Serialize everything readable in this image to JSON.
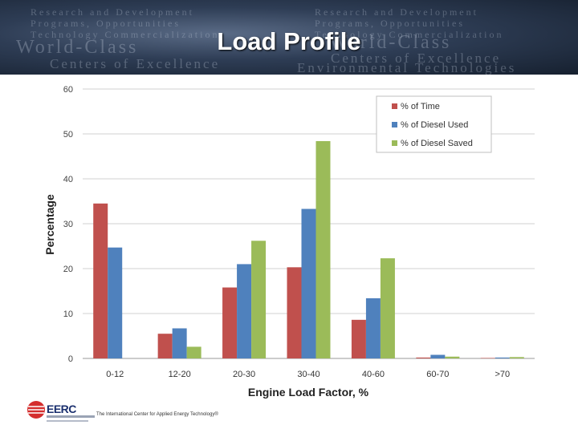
{
  "slide": {
    "title": "Load Profile",
    "banner_lines": [
      "Research and Development",
      "Programs, Opportunities",
      "Technology Commercialization",
      "World-Class",
      "Centers of Excellence",
      "Environmental Technologies"
    ],
    "footer_text": "The International Center for Applied Energy Technology®",
    "logo_text": "EERC"
  },
  "chart_data": {
    "type": "bar",
    "title": "",
    "xlabel": "Engine Load Factor, %",
    "ylabel": "Percentage",
    "categories": [
      "0-12",
      "12-20",
      "20-30",
      "30-40",
      "40-60",
      "60-70",
      ">70"
    ],
    "ylim": [
      0,
      60
    ],
    "yticks": [
      0,
      10,
      20,
      30,
      40,
      50,
      60
    ],
    "grid": true,
    "legend_position": "top-right",
    "series": [
      {
        "name": "% of Time",
        "color": "#c0504d",
        "values": [
          34.5,
          5.5,
          15.8,
          20.3,
          8.6,
          0.2,
          0.1
        ]
      },
      {
        "name": "% of Diesel Used",
        "color": "#4f81bd",
        "values": [
          24.7,
          6.7,
          21.0,
          33.3,
          13.4,
          0.8,
          0.2
        ]
      },
      {
        "name": "% of Diesel Saved",
        "color": "#9bbb59",
        "values": [
          0,
          2.6,
          26.2,
          48.4,
          22.3,
          0.4,
          0.3
        ]
      }
    ]
  }
}
